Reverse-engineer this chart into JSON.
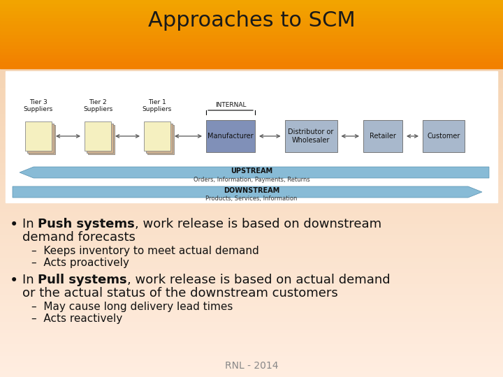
{
  "title": "Approaches to SCM",
  "title_fontsize": 22,
  "title_color": "#1a1a1a",
  "footer": "RNL - 2014",
  "footer_fontsize": 10,
  "sub1_1": "Keeps inventory to meet actual demand",
  "sub1_2": "Acts proactively",
  "sub2_1": "May cause long delivery lead times",
  "sub2_2": "Acts reactively",
  "text_fontsize": 13,
  "sub_fontsize": 11,
  "supplier_fill": "#F5F0C0",
  "supplier_shadow": "#D4B490",
  "mfr_fill": "#8090B8",
  "dist_fill": "#A8B8CC",
  "retailer_fill": "#A8B8CC",
  "customer_fill": "#A8B8CC",
  "upstream_color": "#7AAFC8",
  "downstream_color": "#7AAFC8"
}
